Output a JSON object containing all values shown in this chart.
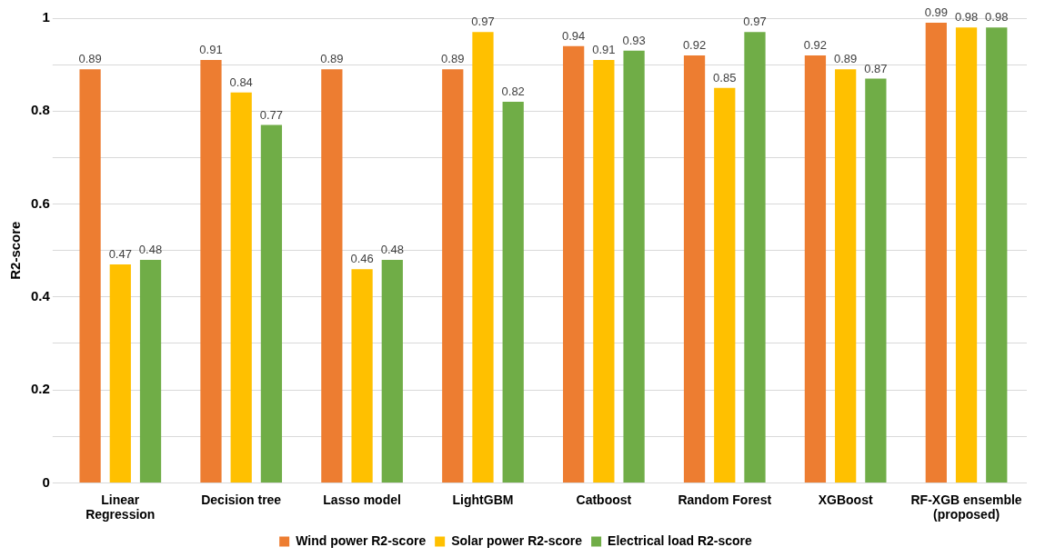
{
  "chart_data": {
    "type": "bar",
    "ylabel": "R2-score",
    "categories": [
      "Linear Regression",
      "Decision tree",
      "Lasso model",
      "LightGBM",
      "Catboost",
      "Random Forest",
      "XGBoost",
      "RF-XGB ensemble (proposed)"
    ],
    "series": [
      {
        "name": "Wind power R2-score",
        "color": "#ed7d31",
        "values": [
          0.89,
          0.91,
          0.89,
          0.89,
          0.94,
          0.92,
          0.92,
          0.99
        ]
      },
      {
        "name": "Solar power R2-score",
        "color": "#ffc000",
        "values": [
          0.47,
          0.84,
          0.46,
          0.97,
          0.91,
          0.85,
          0.89,
          0.98
        ]
      },
      {
        "name": "Electrical load R2-score",
        "color": "#70ad47",
        "values": [
          0.48,
          0.77,
          0.48,
          0.82,
          0.93,
          0.97,
          0.87,
          0.98
        ]
      }
    ],
    "ylim": [
      0,
      1
    ],
    "yticks": [
      0,
      {
        "value": 0.1,
        "label": null
      },
      0.2,
      {
        "value": 0.3,
        "label": null
      },
      0.4,
      {
        "value": 0.5,
        "label": null
      },
      0.6,
      {
        "value": 0.7,
        "label": null
      },
      0.8,
      {
        "value": 0.9,
        "label": null
      },
      1
    ],
    "grid": "y",
    "legend": "bottom",
    "data_labels": true
  }
}
